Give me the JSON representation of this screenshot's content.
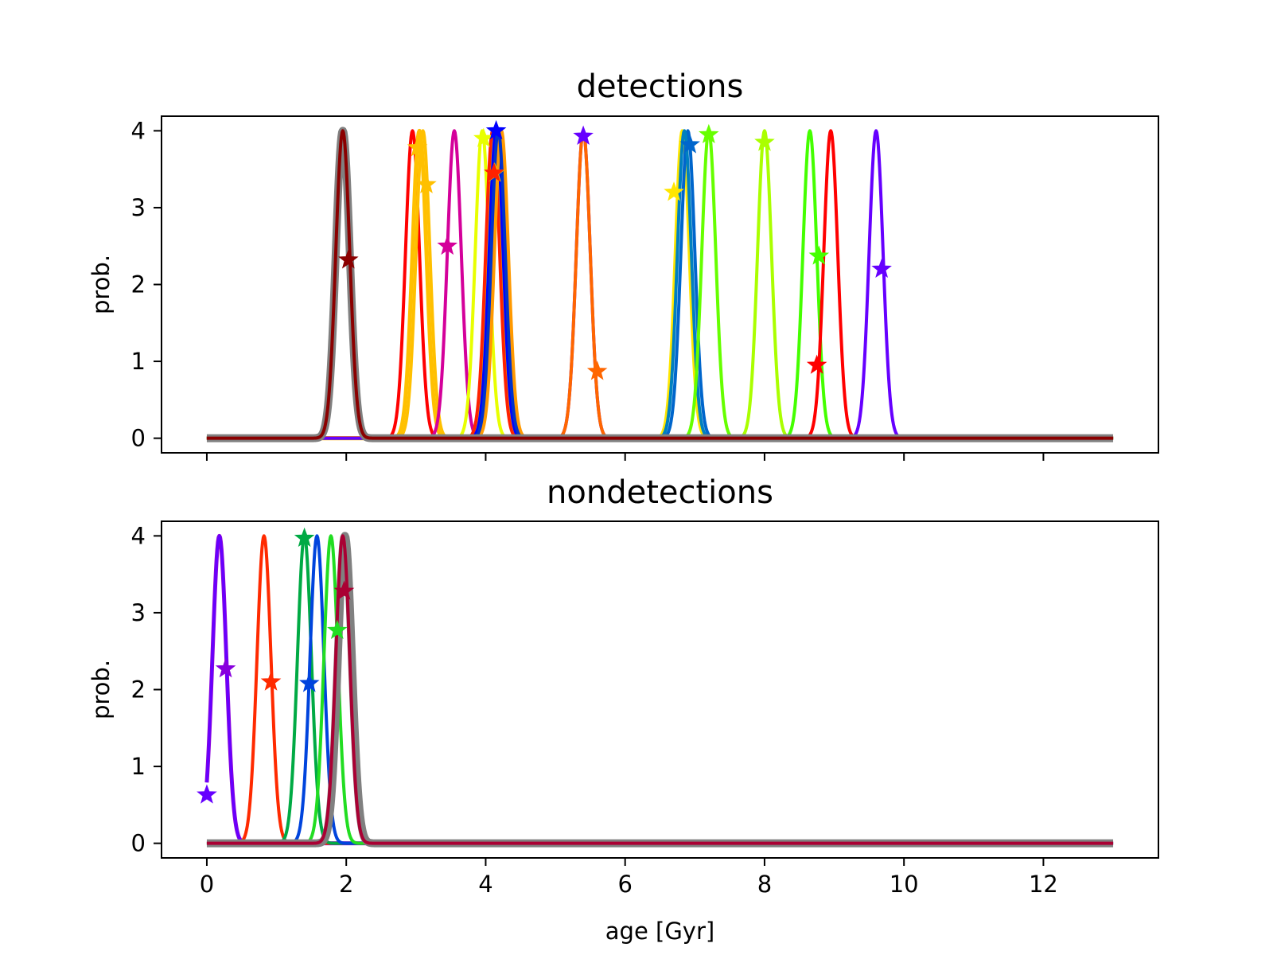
{
  "chart_data": [
    {
      "type": "line",
      "title": "detections",
      "xlabel": "",
      "ylabel": "prob.",
      "xlim": [
        -0.65,
        13.65
      ],
      "ylim": [
        -0.19,
        4.19
      ],
      "xticks": [
        0,
        2,
        4,
        6,
        8,
        10,
        12
      ],
      "xtick_labels": [
        "",
        "",
        "",
        "",
        "",
        "",
        ""
      ],
      "yticks": [
        0,
        1,
        2,
        3,
        4
      ],
      "ytick_labels": [
        "0",
        "1",
        "2",
        "3",
        "4"
      ],
      "grid": false,
      "legend": "none",
      "x_domain": [
        0,
        13
      ],
      "sigma": 0.1,
      "peak": 4.0,
      "series": [
        {
          "center": 2.95,
          "color": "#FF0000",
          "width": 4,
          "star": [
            8.75,
            0.95
          ]
        },
        {
          "center": 5.4,
          "color": "#6600FF",
          "width": 4,
          "star": [
            5.4,
            3.93
          ]
        },
        {
          "center": 6.82,
          "color": "#FFE600",
          "width": 4,
          "star": [
            6.7,
            3.2
          ]
        },
        {
          "center": 6.9,
          "color": "#0066CC",
          "width": 4,
          "star": [
            6.93,
            3.82
          ]
        },
        {
          "center": 4.12,
          "color": "#E0E000",
          "width": 4,
          "star": [
            4.13,
            3.45
          ]
        },
        {
          "center": 3.05,
          "color": "#FFC000",
          "width": 5,
          "star": [
            3.02,
            3.78
          ]
        },
        {
          "center": 3.1,
          "color": "#FFC000",
          "width": 4,
          "star": [
            3.15,
            3.3
          ]
        },
        {
          "center": 3.55,
          "color": "#D4009A",
          "width": 4,
          "star": [
            3.45,
            2.5
          ]
        },
        {
          "center": 3.95,
          "color": "#E8FF00",
          "width": 4,
          "star": [
            3.97,
            3.9
          ]
        },
        {
          "center": 4.1,
          "color": "#FF2200",
          "width": 4,
          "star": [
            4.12,
            3.45
          ]
        },
        {
          "center": 4.15,
          "color": "#0000FF",
          "width": 4,
          "star": [
            4.15,
            4.0
          ]
        },
        {
          "center": 4.22,
          "color": "#FF9900",
          "width": 5,
          "star": null
        },
        {
          "center": 4.18,
          "color": "#0033CC",
          "width": 4,
          "star": null
        },
        {
          "center": 5.4,
          "color": "#FF6600",
          "width": 4,
          "star": [
            5.6,
            0.87
          ]
        },
        {
          "center": 6.85,
          "color": "#0080C0",
          "width": 4,
          "star": null
        },
        {
          "center": 7.2,
          "color": "#66FF00",
          "width": 4,
          "star": [
            7.2,
            3.95
          ]
        },
        {
          "center": 8.0,
          "color": "#AAFF00",
          "width": 4,
          "star": [
            8.0,
            3.85
          ]
        },
        {
          "center": 8.65,
          "color": "#44FF00",
          "width": 4,
          "star": [
            8.78,
            2.37
          ]
        },
        {
          "center": 8.95,
          "color": "#FF0000",
          "width": 4,
          "star": null
        },
        {
          "center": 9.6,
          "color": "#6600FF",
          "width": 4,
          "star": [
            9.68,
            2.2
          ]
        },
        {
          "center": 1.95,
          "color": "#808080",
          "width": 10,
          "star": null
        },
        {
          "center": 1.95,
          "color": "#8B0000",
          "width": 4,
          "star": [
            2.03,
            2.32
          ]
        }
      ]
    },
    {
      "type": "line",
      "title": "nondetections",
      "xlabel": "age [Gyr]",
      "ylabel": "prob.",
      "xlim": [
        -0.65,
        13.65
      ],
      "ylim": [
        -0.19,
        4.19
      ],
      "xticks": [
        0,
        2,
        4,
        6,
        8,
        10,
        12
      ],
      "xtick_labels": [
        "0",
        "2",
        "4",
        "6",
        "8",
        "10",
        "12"
      ],
      "yticks": [
        0,
        1,
        2,
        3,
        4
      ],
      "ytick_labels": [
        "0",
        "1",
        "2",
        "3",
        "4"
      ],
      "grid": false,
      "legend": "none",
      "x_domain": [
        0,
        13
      ],
      "sigma": 0.1,
      "peak": 4.0,
      "series": [
        {
          "center": 0.18,
          "color": "#8800DD",
          "width": 5,
          "star": [
            0.27,
            2.27
          ]
        },
        {
          "center": 0.18,
          "color": "#6600FF",
          "width": 3,
          "star": [
            0.0,
            0.63
          ]
        },
        {
          "center": 0.82,
          "color": "#FF2A00",
          "width": 4,
          "star": [
            0.92,
            2.1
          ]
        },
        {
          "center": 1.4,
          "color": "#00AA44",
          "width": 4,
          "star": [
            1.4,
            3.97
          ]
        },
        {
          "center": 1.58,
          "color": "#0044DD",
          "width": 4,
          "star": [
            1.47,
            2.08
          ]
        },
        {
          "center": 1.78,
          "color": "#22DD22",
          "width": 4,
          "star": [
            1.87,
            2.77
          ]
        },
        {
          "center": 1.98,
          "color": "#808080",
          "width": 10,
          "star": null
        },
        {
          "center": 1.95,
          "color": "#AA0033",
          "width": 4,
          "star": [
            1.97,
            3.28
          ]
        }
      ]
    }
  ]
}
